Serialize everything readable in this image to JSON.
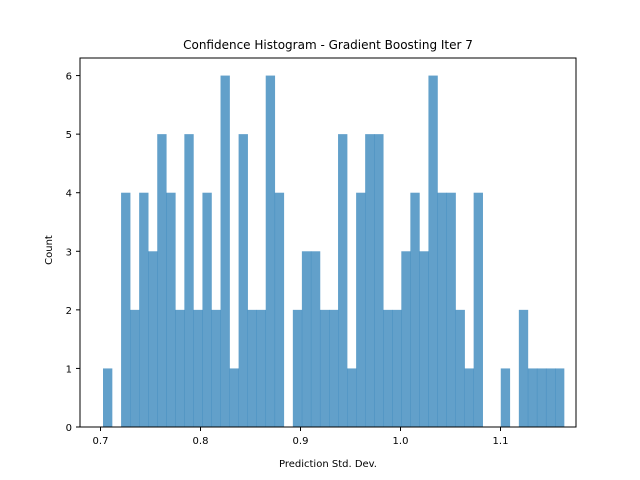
{
  "chart_data": {
    "type": "bar",
    "title": "Confidence Histogram - Gradient Boosting Iter 7",
    "xlabel": "Prediction Std. Dev.",
    "ylabel": "Count",
    "xlim": [
      0.6795,
      1.1755
    ],
    "ylim": [
      0,
      6.3
    ],
    "x_ticks": [
      0.7,
      0.8,
      0.9,
      1.0,
      1.1
    ],
    "x_tick_labels": [
      "0.7",
      "0.8",
      "0.9",
      "1.0",
      "1.1"
    ],
    "y_ticks": [
      0,
      1,
      2,
      3,
      4,
      5,
      6
    ],
    "y_tick_labels": [
      "0",
      "1",
      "2",
      "3",
      "4",
      "5",
      "6"
    ],
    "bin_start": 0.7025,
    "bin_width": 0.00904,
    "counts": [
      1,
      0,
      4,
      2,
      4,
      3,
      5,
      4,
      2,
      5,
      2,
      4,
      2,
      6,
      1,
      5,
      2,
      2,
      6,
      4,
      0,
      2,
      3,
      3,
      2,
      2,
      5,
      1,
      4,
      5,
      5,
      2,
      2,
      3,
      4,
      3,
      6,
      4,
      4,
      2,
      1,
      4,
      0,
      0,
      1,
      0,
      2,
      1,
      1,
      1,
      1
    ],
    "bar_color": "#1f77b4",
    "bar_alpha": 0.7,
    "grid": false
  }
}
